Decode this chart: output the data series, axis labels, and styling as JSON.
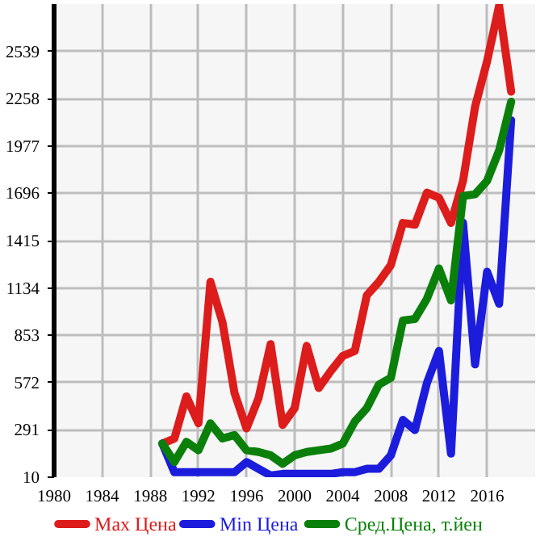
{
  "chart_data": {
    "type": "line",
    "x": [
      1989,
      1990,
      1991,
      1992,
      1993,
      1994,
      1995,
      1996,
      1997,
      1998,
      1999,
      2000,
      2001,
      2002,
      2003,
      2004,
      2005,
      2006,
      2007,
      2008,
      2009,
      2010,
      2011,
      2012,
      2013,
      2014,
      2015,
      2016,
      2017,
      2018
    ],
    "series": [
      {
        "name": "Max Цена",
        "color": "#dd1c1c",
        "values": [
          210,
          240,
          490,
          330,
          1170,
          930,
          510,
          300,
          480,
          800,
          320,
          420,
          790,
          540,
          640,
          730,
          760,
          1090,
          1170,
          1270,
          1520,
          1510,
          1700,
          1670,
          1520,
          1770,
          2210,
          2480,
          2810,
          2300
        ]
      },
      {
        "name": "Min Цена",
        "color": "#1c1cdd",
        "values": [
          210,
          40,
          40,
          40,
          40,
          40,
          40,
          100,
          60,
          20,
          30,
          30,
          30,
          30,
          30,
          40,
          40,
          60,
          60,
          140,
          350,
          290,
          570,
          760,
          150,
          1520,
          680,
          1230,
          1040,
          2130
        ]
      },
      {
        "name": "Сред.Цена, т.йен",
        "color": "#0a800a",
        "values": [
          210,
          100,
          220,
          170,
          330,
          240,
          260,
          170,
          160,
          140,
          90,
          140,
          160,
          170,
          180,
          210,
          340,
          420,
          560,
          600,
          940,
          950,
          1070,
          1250,
          1060,
          1680,
          1690,
          1770,
          1950,
          2240
        ]
      }
    ],
    "xlim": [
      1980,
      2020
    ],
    "ylim": [
      10,
      2820
    ],
    "xticks": [
      1980,
      1984,
      1988,
      1992,
      1996,
      2000,
      2004,
      2008,
      2012,
      2016
    ],
    "yticks": [
      10,
      291,
      572,
      853,
      1134,
      1415,
      1696,
      1977,
      2258,
      2539
    ],
    "grid": true,
    "legend": "bottom",
    "line_style": "solid",
    "marker": "none"
  }
}
